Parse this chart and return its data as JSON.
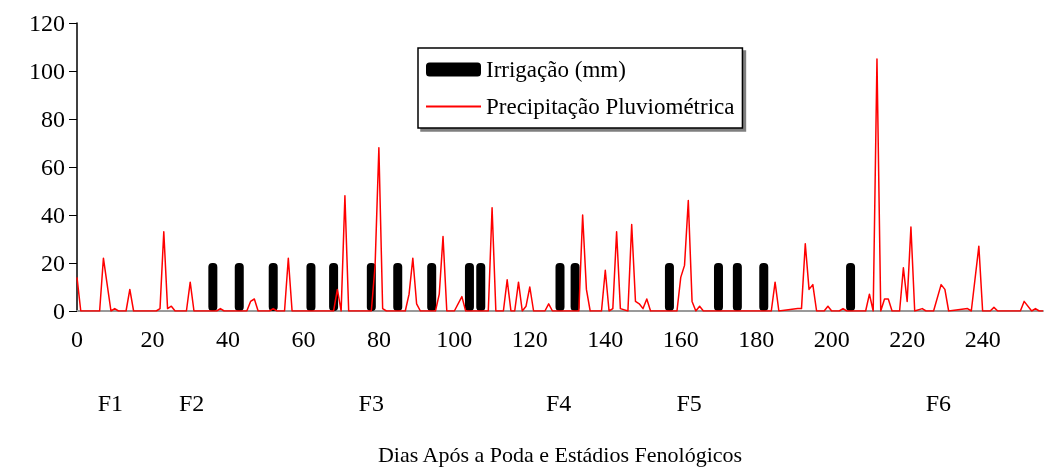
{
  "chart_data": {
    "type": "line",
    "xlabel": "Dias Após a Poda e Estádios Fenológicos",
    "annotations": [
      "F1",
      "F2",
      "F3",
      "F4",
      "F5",
      "F6"
    ],
    "series": [
      {
        "name": "Irrigação (mm)",
        "type": "bar",
        "color": "#000000",
        "x": [
          36,
          43,
          52,
          62,
          68,
          78,
          85,
          94,
          104,
          107,
          128,
          132,
          157,
          170,
          175,
          182,
          205
        ],
        "values": [
          20,
          20,
          20,
          20,
          20,
          20,
          20,
          20,
          20,
          20,
          20,
          20,
          20,
          20,
          20,
          20,
          20
        ]
      },
      {
        "name": "Precipitação Pluviométrica",
        "color": "#ff0000",
        "x": [
          0,
          1,
          6,
          7,
          8,
          9,
          10,
          11,
          13,
          14,
          15,
          21,
          22,
          23,
          24,
          25,
          26,
          29,
          30,
          31,
          37,
          38,
          39,
          45,
          46,
          47,
          48,
          51,
          52,
          53,
          55,
          56,
          57,
          68,
          69,
          70,
          71,
          72,
          78,
          79,
          80,
          81,
          82,
          87,
          88,
          89,
          90,
          91,
          95,
          96,
          97,
          98,
          100,
          102,
          103,
          109,
          110,
          111,
          113,
          114,
          115,
          116,
          117,
          118,
          119,
          120,
          121,
          124,
          125,
          126,
          133,
          134,
          135,
          136,
          139,
          140,
          141,
          142,
          143,
          144,
          146,
          147,
          148,
          149,
          150,
          151,
          152,
          159,
          160,
          161,
          162,
          163,
          164,
          165,
          166,
          184,
          185,
          186,
          191,
          192,
          193,
          194,
          195,
          196,
          198,
          199,
          200,
          202,
          203,
          204,
          209,
          210,
          211,
          212,
          213,
          214,
          215,
          216,
          218,
          219,
          220,
          221,
          222,
          224,
          225,
          227,
          229,
          230,
          231,
          236,
          237,
          239,
          240,
          242,
          243,
          244,
          250,
          251,
          253,
          254,
          255,
          256
        ],
        "values": [
          14,
          0,
          0,
          22,
          11,
          0,
          1,
          0,
          0,
          9,
          0,
          0,
          1,
          33,
          1,
          2,
          0,
          0,
          12,
          0,
          0,
          1,
          0,
          0,
          4,
          5,
          0,
          0,
          1,
          0,
          0,
          22,
          0,
          0,
          9,
          0,
          48,
          0,
          0,
          19,
          68,
          1,
          0,
          0,
          7,
          22,
          3,
          0,
          0,
          7,
          31,
          0,
          0,
          6,
          0,
          0,
          43,
          0,
          0,
          13,
          0,
          0,
          12,
          0,
          2,
          10,
          0,
          0,
          3,
          0,
          0,
          40,
          9,
          0,
          0,
          17,
          0,
          1,
          33,
          1,
          0,
          36,
          4,
          3,
          1,
          5,
          0,
          0,
          14,
          19,
          46,
          4,
          0,
          2,
          0,
          0,
          12,
          0,
          1,
          1,
          28,
          9,
          11,
          0,
          0,
          2,
          0,
          0,
          1,
          0,
          0,
          7,
          0,
          105,
          0,
          5,
          5,
          0,
          0,
          18,
          4,
          35,
          0,
          1,
          0,
          0,
          11,
          9,
          0,
          1,
          0,
          27,
          0,
          0,
          1.5,
          0,
          0,
          4,
          0,
          1,
          0,
          0
        ]
      }
    ],
    "xlim": [
      0,
      256
    ],
    "xticks": [
      0,
      20,
      40,
      60,
      80,
      100,
      120,
      140,
      160,
      180,
      200,
      220,
      240
    ],
    "ylim": [
      0,
      120
    ],
    "yticks": [
      0,
      20,
      40,
      60,
      80,
      100,
      120
    ],
    "grid": false,
    "legend": "top",
    "marker": "none",
    "line_style": "solid"
  }
}
